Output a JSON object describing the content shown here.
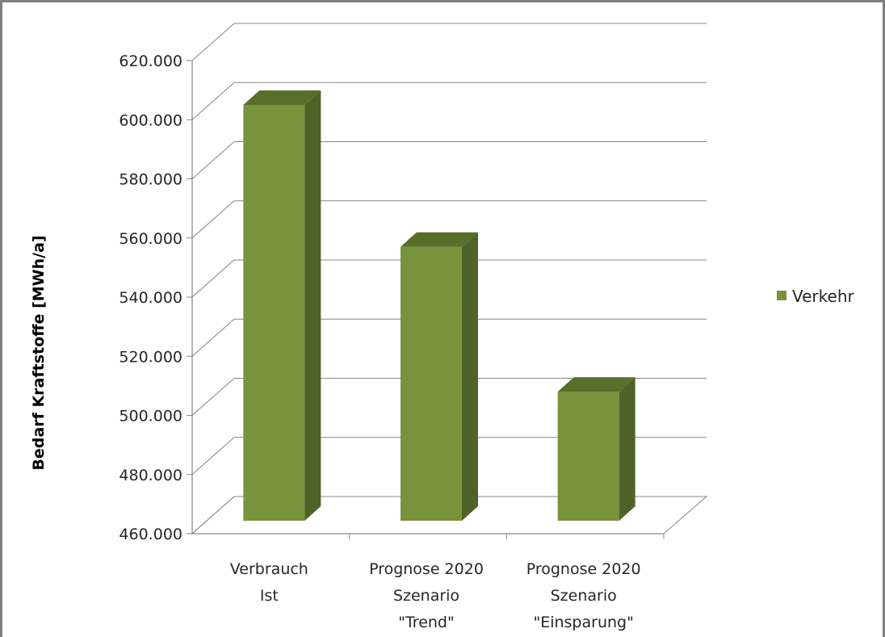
{
  "chart_data": {
    "type": "bar",
    "categories": [
      [
        "Verbrauch",
        "Ist"
      ],
      [
        "Prognose 2020",
        "Szenario",
        "\"Trend\""
      ],
      [
        "Prognose 2020",
        "Szenario",
        "\"Einsparung\""
      ]
    ],
    "series": [
      {
        "name": "Verkehr",
        "values": [
          605000,
          557000,
          508000
        ],
        "color": "#77933c"
      }
    ],
    "ylabel": "Bedarf Kraftstoffe [MWh/a]",
    "ylim": [
      460000,
      620000
    ],
    "yticks": [
      "460.000",
      "480.000",
      "500.000",
      "520.000",
      "540.000",
      "560.000",
      "580.000",
      "600.000",
      "620.000"
    ],
    "grid": true,
    "three_d": true,
    "legend_position": "right"
  }
}
